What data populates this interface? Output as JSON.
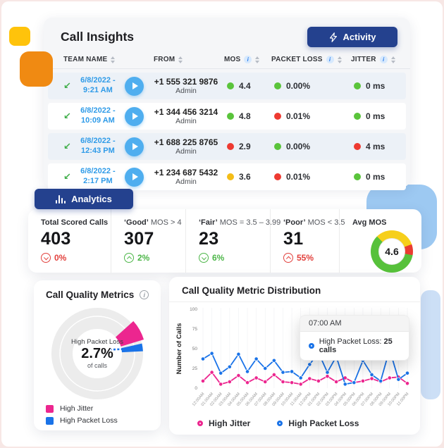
{
  "colors": {
    "navy": "#24418E",
    "link_blue": "#2F9BE8",
    "green": "#5AC43B",
    "red": "#EE3A31",
    "yellow": "#F4BD17",
    "pink": "#EC268F",
    "blue": "#1A73E8",
    "donut_gray": "#ECECEC",
    "deco_yellow": "#FFC30B",
    "deco_orange": "#F08A12",
    "deco_blue": "#9DC9F2",
    "deco_blue_light": "#CCDFF6"
  },
  "icons": {
    "info_glyph": "i",
    "incoming_call_glyph": "↙"
  },
  "call_insights": {
    "title": "Call Insights",
    "activity_button": "Activity",
    "table": {
      "columns": [
        {
          "label": "TEAM NAME"
        },
        {
          "label": "FROM"
        },
        {
          "label": "MOS"
        },
        {
          "label": "PACKET LOSS"
        },
        {
          "label": "JITTER"
        }
      ],
      "rows": [
        {
          "date": "6/8/2022 -",
          "time": "9:21 AM",
          "phone": "+1 555 321 9876",
          "name": "Admin",
          "mos": {
            "value": "4.4",
            "status": "green"
          },
          "packet_loss": {
            "value": "0.00%",
            "status": "green"
          },
          "jitter": {
            "value": "0 ms",
            "status": "green"
          }
        },
        {
          "date": "6/8/2022 -",
          "time": "10:09 AM",
          "phone": "+1 344 456 3214",
          "name": "Admin",
          "mos": {
            "value": "4.8",
            "status": "green"
          },
          "packet_loss": {
            "value": "0.01%",
            "status": "red"
          },
          "jitter": {
            "value": "0 ms",
            "status": "green"
          }
        },
        {
          "date": "6/8/2022 -",
          "time": "12:43 PM",
          "phone": "+1 688 225 8765",
          "name": "Admin",
          "mos": {
            "value": "2.9",
            "status": "red"
          },
          "packet_loss": {
            "value": "0.00%",
            "status": "green"
          },
          "jitter": {
            "value": "4 ms",
            "status": "red"
          }
        },
        {
          "date": "6/8/2022 -",
          "time": "2:17 PM",
          "phone": "+1 234 687 5432",
          "name": "Admin",
          "mos": {
            "value": "3.6",
            "status": "yellow"
          },
          "packet_loss": {
            "value": "0.01%",
            "status": "red"
          },
          "jitter": {
            "value": "0 ms",
            "status": "green"
          }
        }
      ]
    }
  },
  "analytics": {
    "button": "Analytics",
    "stats": [
      {
        "label_bold": "Total Scored Calls",
        "label_rest": "",
        "value": "403",
        "delta": "0%",
        "delta_dir": "down",
        "delta_color": "red"
      },
      {
        "label_bold": "‘Good’",
        "label_rest": " MOS > 4",
        "value": "307",
        "delta": "2%",
        "delta_dir": "up",
        "delta_color": "green"
      },
      {
        "label_bold": "‘Fair’",
        "label_rest": " MOS = 3.5 – 3.99",
        "value": "23",
        "delta": "6%",
        "delta_dir": "down",
        "delta_color": "green"
      },
      {
        "label_bold": "‘Poor’",
        "label_rest": " MOS < 3.5",
        "value": "31",
        "delta": "55%",
        "delta_dir": "up",
        "delta_color": "red"
      }
    ],
    "avg_mos": {
      "label": "Avg MOS",
      "value": "4.6",
      "start_deg": 315,
      "segments": [
        {
          "color": "#F6CF1B",
          "deg": 115
        },
        {
          "color": "#EA3B31",
          "deg": 30
        },
        {
          "color": "#57C13B",
          "deg": 215
        }
      ]
    }
  },
  "chart_data": [
    {
      "type": "pie",
      "title": "Call Quality Metrics",
      "slices": [
        {
          "label": "High Jitter",
          "pct": 7,
          "color": "#EC268F"
        },
        {
          "label": "High Packet Loss",
          "pct": 2.7,
          "color": "#1A73E8"
        },
        {
          "label": "Other calls",
          "pct": 90.3,
          "color": "#ECECEC"
        }
      ],
      "center": {
        "label": "High Packet Loss",
        "value": "2.7%",
        "sub": "of calls"
      },
      "legend": [
        {
          "label": "High Jitter",
          "color": "#EC268F"
        },
        {
          "label": "High Packet Loss",
          "color": "#1A73E8"
        }
      ]
    },
    {
      "type": "line",
      "title": "Call Quality Metric Distribution",
      "ylabel": "Number of Calls",
      "ylim": [
        0,
        100
      ],
      "yticks": [
        100,
        75,
        50,
        25,
        0
      ],
      "grid": "vertical-light",
      "legend_position": "bottom",
      "x": [
        "12:00AM",
        "01:00AM",
        "02:00AM",
        "03:00AM",
        "04:00AM",
        "05:00AM",
        "06:00AM",
        "07:00AM",
        "08:00AM",
        "09:00AM",
        "10:00AM",
        "11:00AM",
        "12:00PM",
        "01:00PM",
        "02:00PM",
        "03:00PM",
        "04:00PM",
        "05:00PM",
        "06:00PM",
        "07:00PM",
        "08:00PM",
        "09:00PM",
        "10:00PM",
        "11:00PM"
      ],
      "series": [
        {
          "name": "High Jitter",
          "color": "#EC268F",
          "values": [
            9,
            20,
            5,
            8,
            16,
            7,
            13,
            8,
            17,
            8,
            7,
            5,
            12,
            9,
            15,
            8,
            13,
            7,
            9,
            12,
            8,
            13,
            14,
            6
          ]
        },
        {
          "name": "High Packet Loss",
          "color": "#1A73E8",
          "values": [
            37,
            44,
            19,
            27,
            43,
            21,
            37,
            25,
            35,
            20,
            21,
            13,
            30,
            45,
            20,
            40,
            5,
            7,
            35,
            17,
            9,
            49,
            11,
            19
          ]
        }
      ],
      "tooltip": {
        "time": "07:00 AM",
        "series_label": "High Packet Loss:",
        "value": "25 calls"
      }
    }
  ]
}
